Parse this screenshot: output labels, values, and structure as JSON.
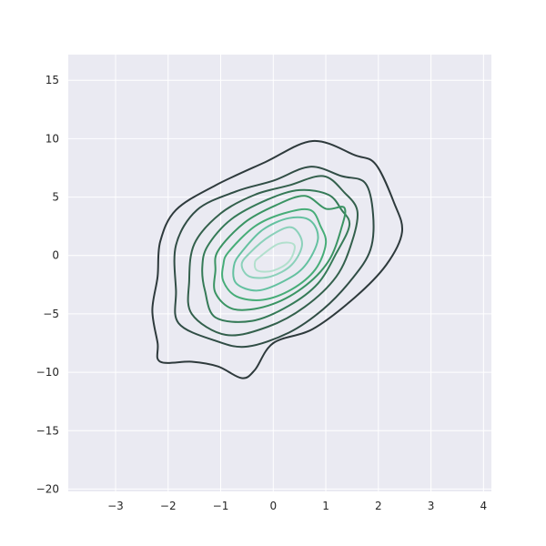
{
  "chart_data": {
    "type": "kde-contour",
    "title": "",
    "xlabel": "",
    "ylabel": "",
    "xlim": [
      -3.9,
      4.15
    ],
    "ylim": [
      -20.2,
      17.2
    ],
    "xticks": [
      -3,
      -2,
      -1,
      0,
      1,
      2,
      3,
      4
    ],
    "yticks": [
      -20,
      -15,
      -10,
      -5,
      0,
      5,
      10,
      15
    ],
    "xtick_labels": [
      "−3",
      "−2",
      "−1",
      "0",
      "1",
      "2",
      "3",
      "4"
    ],
    "ytick_labels": [
      "−20",
      "−15",
      "−10",
      "−5",
      "0",
      "5",
      "10",
      "15"
    ],
    "grid": true,
    "background": "#eaeaf2",
    "grid_color": "#ffffff",
    "contours": [
      {
        "color": "#2e3a3c",
        "points": [
          [
            -2.15,
            1.2
          ],
          [
            -1.85,
            3.9
          ],
          [
            -1.1,
            6.0
          ],
          [
            -0.15,
            8.0
          ],
          [
            0.75,
            9.8
          ],
          [
            1.55,
            8.6
          ],
          [
            1.95,
            7.8
          ],
          [
            2.3,
            4.5
          ],
          [
            2.45,
            2.0
          ],
          [
            2.15,
            -0.8
          ],
          [
            1.55,
            -3.6
          ],
          [
            0.75,
            -6.3
          ],
          [
            0.0,
            -7.5
          ],
          [
            -0.35,
            -9.8
          ],
          [
            -0.6,
            -10.5
          ],
          [
            -1.05,
            -9.5
          ],
          [
            -1.55,
            -9.1
          ],
          [
            -2.15,
            -9.1
          ],
          [
            -2.2,
            -7.5
          ],
          [
            -2.3,
            -4.7
          ],
          [
            -2.2,
            -1.8
          ]
        ]
      },
      {
        "color": "#304d45",
        "points": [
          [
            -1.85,
            0.9
          ],
          [
            -1.45,
            3.9
          ],
          [
            -0.7,
            5.5
          ],
          [
            0.0,
            6.4
          ],
          [
            0.7,
            7.6
          ],
          [
            1.3,
            6.8
          ],
          [
            1.75,
            6.2
          ],
          [
            1.9,
            3.5
          ],
          [
            1.85,
            0.5
          ],
          [
            1.5,
            -2.0
          ],
          [
            0.95,
            -4.6
          ],
          [
            0.3,
            -6.6
          ],
          [
            -0.5,
            -7.8
          ],
          [
            -1.1,
            -7.3
          ],
          [
            -1.8,
            -5.8
          ],
          [
            -1.85,
            -3.0
          ]
        ]
      },
      {
        "color": "#33604c",
        "points": [
          [
            -1.5,
            1.0
          ],
          [
            -1.0,
            3.6
          ],
          [
            -0.35,
            5.2
          ],
          [
            0.3,
            6.0
          ],
          [
            0.95,
            6.8
          ],
          [
            1.35,
            5.4
          ],
          [
            1.6,
            3.8
          ],
          [
            1.5,
            1.2
          ],
          [
            1.2,
            -1.8
          ],
          [
            0.6,
            -4.4
          ],
          [
            -0.1,
            -6.1
          ],
          [
            -0.9,
            -6.8
          ],
          [
            -1.55,
            -5.0
          ],
          [
            -1.6,
            -2.2
          ]
        ]
      },
      {
        "color": "#357a57",
        "points": [
          [
            -1.25,
            0.8
          ],
          [
            -0.8,
            3.1
          ],
          [
            -0.1,
            4.8
          ],
          [
            0.5,
            5.6
          ],
          [
            1.05,
            5.2
          ],
          [
            1.3,
            3.9
          ],
          [
            1.45,
            2.6
          ],
          [
            1.2,
            0.2
          ],
          [
            0.85,
            -2.4
          ],
          [
            0.3,
            -4.3
          ],
          [
            -0.4,
            -5.6
          ],
          [
            -1.1,
            -5.3
          ],
          [
            -1.3,
            -3.0
          ],
          [
            -1.35,
            -1.0
          ]
        ]
      },
      {
        "color": "#3a9463",
        "points": [
          [
            -1.05,
            0.4
          ],
          [
            -0.55,
            2.8
          ],
          [
            0.05,
            4.3
          ],
          [
            0.6,
            5.1
          ],
          [
            1.0,
            4.0
          ],
          [
            1.35,
            4.1
          ],
          [
            1.3,
            2.4
          ],
          [
            1.05,
            -0.5
          ],
          [
            0.55,
            -2.8
          ],
          [
            -0.1,
            -4.3
          ],
          [
            -0.75,
            -4.6
          ],
          [
            -1.1,
            -3.2
          ],
          [
            -1.1,
            -1.3
          ]
        ]
      },
      {
        "color": "#47ad78",
        "points": [
          [
            -0.85,
            0.3
          ],
          [
            -0.35,
            2.5
          ],
          [
            0.2,
            3.6
          ],
          [
            0.7,
            3.9
          ],
          [
            0.9,
            2.5
          ],
          [
            1.0,
            1.0
          ],
          [
            0.8,
            -1.2
          ],
          [
            0.35,
            -2.9
          ],
          [
            -0.2,
            -3.8
          ],
          [
            -0.7,
            -3.5
          ],
          [
            -0.95,
            -2.2
          ],
          [
            -0.95,
            -0.8
          ]
        ]
      },
      {
        "color": "#64c1a0",
        "points": [
          [
            -0.6,
            0.3
          ],
          [
            -0.2,
            2.2
          ],
          [
            0.3,
            3.2
          ],
          [
            0.7,
            3.0
          ],
          [
            0.85,
            1.4
          ],
          [
            0.6,
            -0.9
          ],
          [
            0.2,
            -2.2
          ],
          [
            -0.3,
            -3.0
          ],
          [
            -0.7,
            -2.4
          ],
          [
            -0.75,
            -0.9
          ]
        ]
      },
      {
        "color": "#8bd1ba",
        "points": [
          [
            -0.45,
            0.2
          ],
          [
            -0.05,
            1.7
          ],
          [
            0.35,
            2.4
          ],
          [
            0.55,
            1.0
          ],
          [
            0.35,
            -0.8
          ],
          [
            -0.05,
            -1.8
          ],
          [
            -0.45,
            -1.8
          ],
          [
            -0.6,
            -0.8
          ]
        ]
      },
      {
        "color": "#b2e0cd",
        "points": [
          [
            -0.25,
            -0.1
          ],
          [
            0.1,
            1.0
          ],
          [
            0.4,
            0.9
          ],
          [
            0.3,
            -0.5
          ],
          [
            0.0,
            -1.3
          ],
          [
            -0.3,
            -1.3
          ],
          [
            -0.35,
            -0.6
          ]
        ]
      }
    ]
  }
}
